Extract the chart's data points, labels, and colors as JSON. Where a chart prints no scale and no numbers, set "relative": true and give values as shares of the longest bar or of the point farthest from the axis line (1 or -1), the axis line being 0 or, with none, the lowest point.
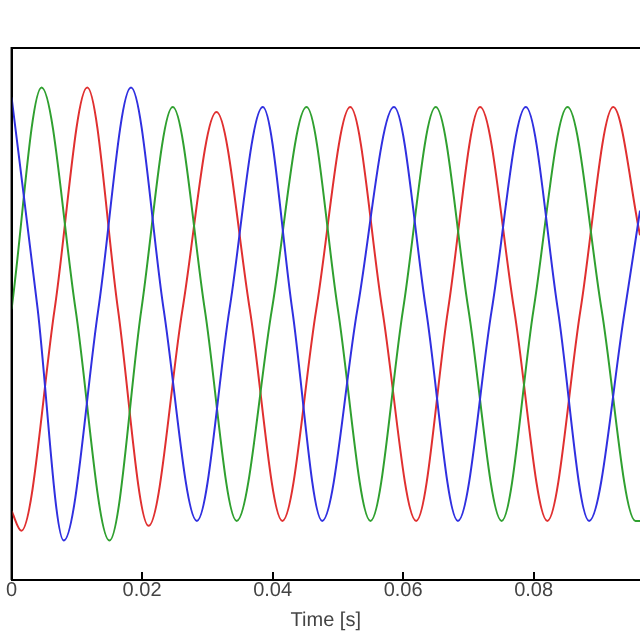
{
  "chart_data": {
    "type": "line",
    "relative": true,
    "xlabel": "Time [s]",
    "xlim": [
      0,
      0.0963
    ],
    "xticks": [
      0,
      0.02,
      0.04,
      0.06,
      0.08
    ],
    "grid": false,
    "legend": false,
    "marker": "none",
    "line_style": "solid",
    "series": [
      {
        "color": "#3030e0",
        "x": [
          0,
          0.004,
          0.008,
          0.0133,
          0.0183,
          0.0233,
          0.0284,
          0.0334,
          0.0385,
          0.043,
          0.0476,
          0.053,
          0.0586,
          0.0635,
          0.0684,
          0.0736,
          0.0788,
          0.0837,
          0.0885,
          0.094,
          0.0963
        ],
        "values": [
          0.98,
          0.55,
          0.08,
          0.55,
          1.0,
          0.55,
          0.12,
          0.55,
          0.96,
          0.55,
          0.12,
          0.55,
          0.96,
          0.55,
          0.12,
          0.55,
          0.96,
          0.55,
          0.12,
          0.55,
          0.75
        ]
      },
      {
        "color": "#30a030",
        "x": [
          0,
          0.0046,
          0.0098,
          0.015,
          0.0199,
          0.0247,
          0.0296,
          0.0345,
          0.0399,
          0.0452,
          0.05,
          0.055,
          0.06,
          0.065,
          0.07,
          0.0751,
          0.08,
          0.0852,
          0.0904,
          0.0956,
          0.0963
        ],
        "values": [
          0.55,
          1.0,
          0.55,
          0.08,
          0.55,
          0.96,
          0.55,
          0.12,
          0.55,
          0.96,
          0.55,
          0.12,
          0.55,
          0.96,
          0.55,
          0.12,
          0.55,
          0.96,
          0.55,
          0.12,
          0.12
        ]
      },
      {
        "color": "#e03030",
        "x": [
          0,
          0.0015,
          0.0066,
          0.0116,
          0.0163,
          0.021,
          0.0262,
          0.0314,
          0.0365,
          0.0415,
          0.0467,
          0.0519,
          0.0568,
          0.062,
          0.0669,
          0.0718,
          0.077,
          0.0821,
          0.0872,
          0.0922,
          0.0963
        ],
        "values": [
          0.14,
          0.1,
          0.55,
          1.0,
          0.55,
          0.11,
          0.55,
          0.95,
          0.55,
          0.12,
          0.55,
          0.96,
          0.55,
          0.12,
          0.55,
          0.96,
          0.55,
          0.12,
          0.55,
          0.96,
          0.7
        ]
      }
    ]
  }
}
